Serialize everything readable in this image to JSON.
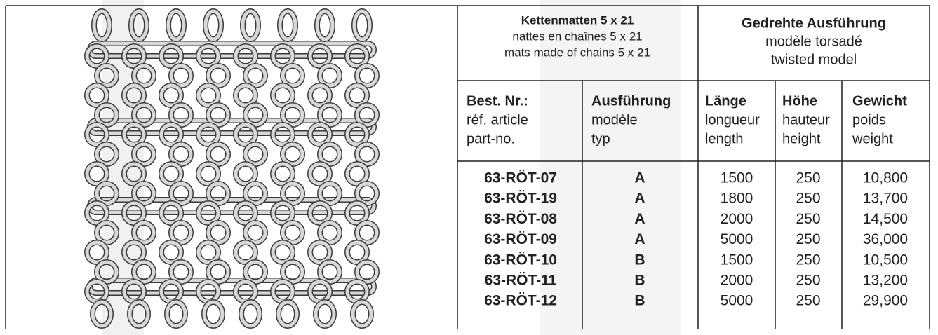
{
  "header": {
    "left": [
      "Kettenmatten 5 x 21",
      "nattes en chaînes 5 x 21",
      "mats made of chains 5 x 21"
    ],
    "right": [
      "Gedrehte Ausführung",
      "modèle torsadé",
      "twisted model"
    ]
  },
  "table": {
    "columns": [
      [
        "Best. Nr.:",
        "réf. article",
        "part-no."
      ],
      [
        "Ausführung",
        "modèle",
        "typ"
      ],
      [
        "Länge",
        "longueur",
        "length"
      ],
      [
        "Höhe",
        "hauteur",
        "height"
      ],
      [
        "Gewicht",
        "poids",
        "weight"
      ]
    ],
    "rows": [
      [
        "63-RÖT-07",
        "A",
        1500,
        250,
        "10,800"
      ],
      [
        "63-RÖT-19",
        "A",
        1800,
        250,
        "13,700"
      ],
      [
        "63-RÖT-08",
        "A",
        2000,
        250,
        "14,500"
      ],
      [
        "63-RÖT-09",
        "A",
        5000,
        250,
        "36,000"
      ],
      [
        "63-RÖT-10",
        "B",
        1500,
        250,
        "10,500"
      ],
      [
        "63-RÖT-11",
        "B",
        2000,
        250,
        "13,200"
      ],
      [
        "63-RÖT-12",
        "B",
        5000,
        250,
        "29,900"
      ]
    ]
  }
}
